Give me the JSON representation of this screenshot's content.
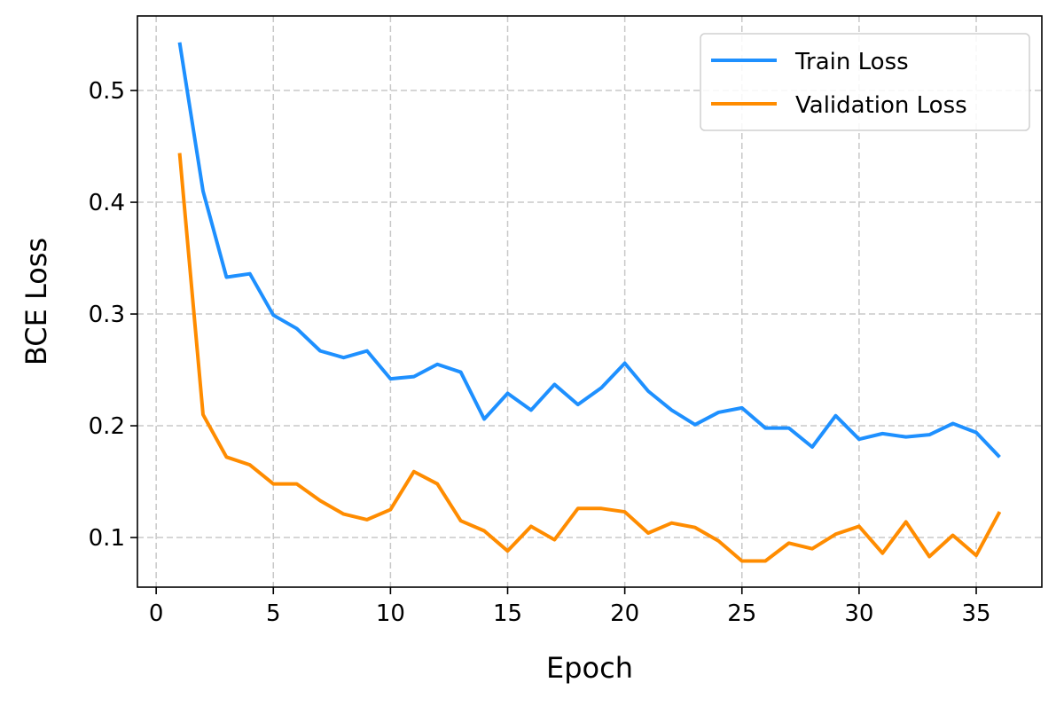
{
  "chart_data": {
    "type": "line",
    "title": "",
    "xlabel": "Epoch",
    "ylabel": "BCE Loss",
    "xlim": [
      -0.8,
      37.8
    ],
    "ylim": [
      0.0556,
      0.5667
    ],
    "xticks": [
      0,
      5,
      10,
      15,
      20,
      25,
      30,
      35
    ],
    "yticks": [
      0.1,
      0.2,
      0.3,
      0.4,
      0.5
    ],
    "xtick_labels": [
      "0",
      "5",
      "10",
      "15",
      "20",
      "25",
      "30",
      "35"
    ],
    "ytick_labels": [
      "0.1",
      "0.2",
      "0.3",
      "0.4",
      "0.5"
    ],
    "grid": true,
    "legend_position": "top-right",
    "x": [
      1,
      2,
      3,
      4,
      5,
      6,
      7,
      8,
      9,
      10,
      11,
      12,
      13,
      14,
      15,
      16,
      17,
      18,
      19,
      20,
      21,
      22,
      23,
      24,
      25,
      26,
      27,
      28,
      29,
      30,
      31,
      32,
      33,
      34,
      35,
      36
    ],
    "series": [
      {
        "name": "Train Loss",
        "color": "#1e90ff",
        "values": [
          0.543,
          0.41,
          0.333,
          0.336,
          0.299,
          0.287,
          0.267,
          0.261,
          0.267,
          0.242,
          0.244,
          0.255,
          0.248,
          0.206,
          0.229,
          0.214,
          0.237,
          0.219,
          0.234,
          0.256,
          0.231,
          0.214,
          0.201,
          0.212,
          0.216,
          0.198,
          0.198,
          0.181,
          0.209,
          0.188,
          0.193,
          0.19,
          0.192,
          0.202,
          0.194,
          0.172
        ]
      },
      {
        "name": "Validation Loss",
        "color": "#ff8c00",
        "values": [
          0.444,
          0.21,
          0.172,
          0.165,
          0.148,
          0.148,
          0.133,
          0.121,
          0.116,
          0.125,
          0.159,
          0.148,
          0.115,
          0.106,
          0.088,
          0.11,
          0.098,
          0.126,
          0.126,
          0.123,
          0.104,
          0.113,
          0.109,
          0.097,
          0.079,
          0.079,
          0.095,
          0.09,
          0.103,
          0.11,
          0.086,
          0.114,
          0.083,
          0.102,
          0.084,
          0.123
        ]
      }
    ]
  }
}
